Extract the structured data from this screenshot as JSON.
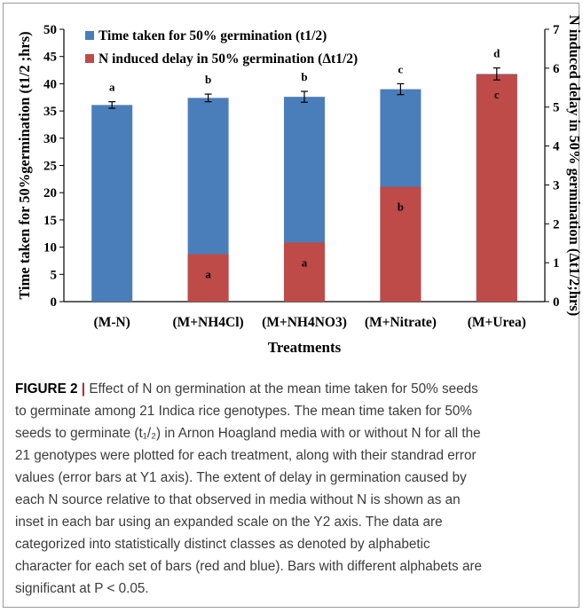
{
  "chart_data": {
    "type": "bar",
    "stacked_inset": true,
    "categories": [
      "(M-N)",
      "(M+NH4Cl)",
      "(M+NH4NO3)",
      "(M+Nitrate)",
      "(M+Urea)"
    ],
    "xlabel": "Treatments",
    "ylabel_left": "Time taken for 50%germination (t1/2 ;hrs)",
    "ylabel_right": "N induced delay in 50% germination (Δt1/2;hrs)",
    "ylim_left": [
      0,
      50
    ],
    "yticks_left": [
      0,
      5,
      10,
      15,
      20,
      25,
      30,
      35,
      40,
      45,
      50
    ],
    "ylim_right": [
      0,
      7
    ],
    "yticks_right": [
      0,
      1,
      2,
      3,
      4,
      5,
      6,
      7
    ],
    "grid": false,
    "legend_position": "top-left",
    "series": [
      {
        "name": "Time taken for 50% germination (t1/2)",
        "axis": "left",
        "color": "#4a7ebb",
        "values": [
          36.1,
          37.4,
          37.6,
          39.0,
          41.8
        ],
        "errors": [
          0.6,
          0.7,
          1.0,
          1.0,
          1.1
        ],
        "letters": [
          "a",
          "b",
          "b",
          "c",
          "d"
        ]
      },
      {
        "name": "N induced delay in 50% germination (Δt1/2)",
        "axis": "right",
        "color": "#be4b48",
        "values": [
          0,
          1.22,
          1.52,
          2.95,
          5.84
        ],
        "letters": [
          "",
          "a",
          "a",
          "b",
          "c"
        ]
      }
    ]
  },
  "caption": {
    "figure_label": "FIGURE 2",
    "separator": "|",
    "lines": [
      "Effect of N on germination at the mean time taken for 50% seeds",
      "to germinate among 21 Indica rice genotypes. The mean time taken for 50%",
      "seeds to germinate (t₁/₂) in Arnon Hoagland media with or without N for all the",
      "21 genotypes were plotted for each treatment, along with their standrad error",
      "values (error bars at Y1 axis). The extent of delay in germination caused by",
      "each N source relative to that observed in media without N is shown as an",
      "inset in each bar using an expanded scale on the Y2 axis. The data are",
      "categorized into statistically distinct classes as denoted by alphabetic",
      "character for each set of bars (red and blue). Bars with different alphabets are",
      "significant at P < 0.05."
    ]
  }
}
